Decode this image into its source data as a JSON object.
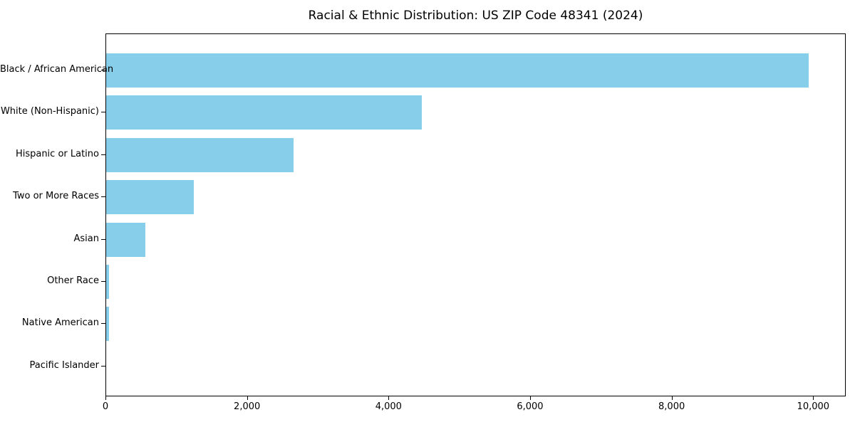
{
  "chart_data": {
    "type": "bar",
    "orientation": "horizontal",
    "title": "Racial & Ethnic Distribution: US ZIP Code 48341 (2024)",
    "categories": [
      "Black / African American",
      "White (Non-Hispanic)",
      "Hispanic or Latino",
      "Two or More Races",
      "Asian",
      "Other Race",
      "Native American",
      "Pacific Islander"
    ],
    "values": [
      9940,
      4460,
      2650,
      1240,
      550,
      40,
      45,
      0
    ],
    "xlabel": "",
    "ylabel": "",
    "xlim": [
      0,
      10450
    ],
    "xticks": [
      0,
      2000,
      4000,
      6000,
      8000,
      10000
    ],
    "xtick_labels": [
      "0",
      "2,000",
      "4,000",
      "6,000",
      "8,000",
      "10,000"
    ],
    "bar_color": "#87CEEB",
    "background_color": "#ffffff",
    "spine_color": "#000000",
    "text_color": "#000000",
    "grid": false,
    "legend": "none"
  }
}
